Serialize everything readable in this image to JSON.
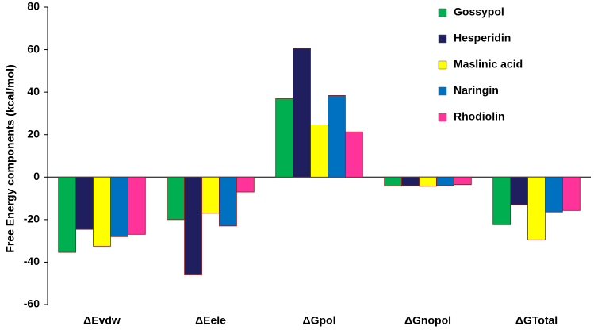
{
  "chart_data": {
    "type": "bar",
    "y_label": "Free Energy components (kcal/mol)",
    "categories": [
      "ΔEvdw",
      "ΔEele",
      "ΔGpol",
      "ΔGnopol",
      "ΔGTotal"
    ],
    "series": [
      {
        "name": "Gossypol",
        "color": "#00b050",
        "values": [
          -35.4,
          -20,
          37,
          -4.2,
          -22.4
        ]
      },
      {
        "name": "Hesperidin",
        "color": "#1f1f5f",
        "values": [
          -24.6,
          -46,
          60.5,
          -4,
          -13
        ]
      },
      {
        "name": "Maslinic acid",
        "color": "#ffff00",
        "values": [
          -32.5,
          -17,
          24.6,
          -4.3,
          -29.5
        ]
      },
      {
        "name": "Naringin",
        "color": "#0070c0",
        "values": [
          -28,
          -23,
          38.4,
          -4,
          -16.4
        ]
      },
      {
        "name": "Rhodiolin",
        "color": "#ff3399",
        "values": [
          -26.9,
          -7,
          21.3,
          -3.5,
          -15.7
        ]
      }
    ],
    "ylim": [
      -60,
      80
    ],
    "yticks": [
      -60,
      -40,
      -20,
      0,
      20,
      40,
      60,
      80
    ],
    "legend": "top-right"
  }
}
